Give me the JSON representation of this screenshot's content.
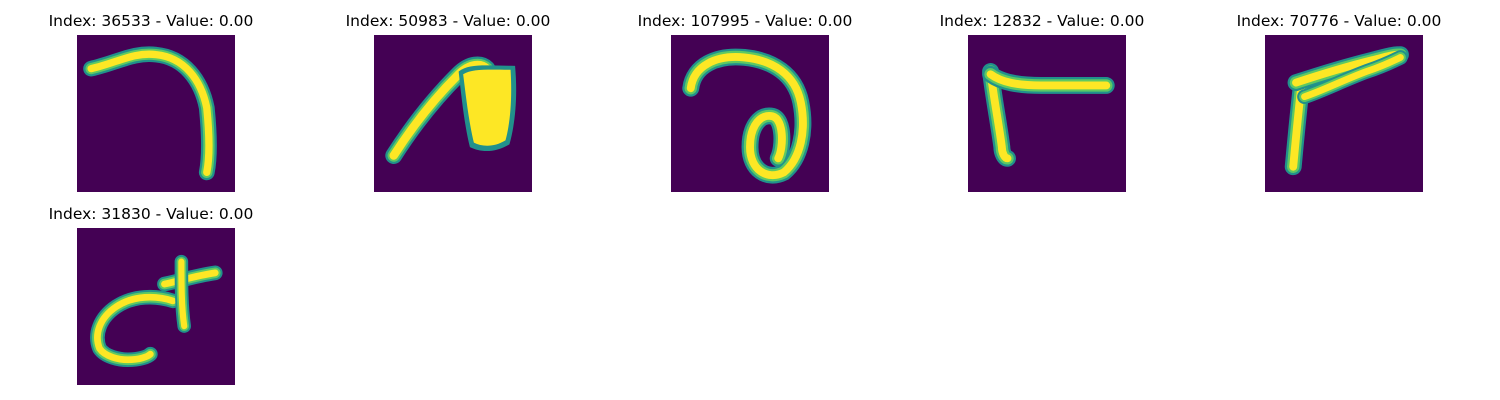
{
  "colors": {
    "background": "#440154",
    "stroke_core": "#fde725",
    "stroke_mid": "#5ec962",
    "stroke_edge": "#21918c"
  },
  "panels": [
    {
      "title": "Index: 36533 - Value: 0.00",
      "glyph": "hook-stroke"
    },
    {
      "title": "Index: 50983 - Value: 0.00",
      "glyph": "filled-loop-stroke"
    },
    {
      "title": "Index: 107995 - Value: 0.00",
      "glyph": "curled-loop-stroke"
    },
    {
      "title": "Index: 12832 - Value: 0.00",
      "glyph": "corner-stroke"
    },
    {
      "title": "Index: 70776 - Value: 0.00",
      "glyph": "angle-stroke"
    },
    {
      "title": "Index: 31830 - Value: 0.00",
      "glyph": "cross-curve-stroke"
    }
  ]
}
